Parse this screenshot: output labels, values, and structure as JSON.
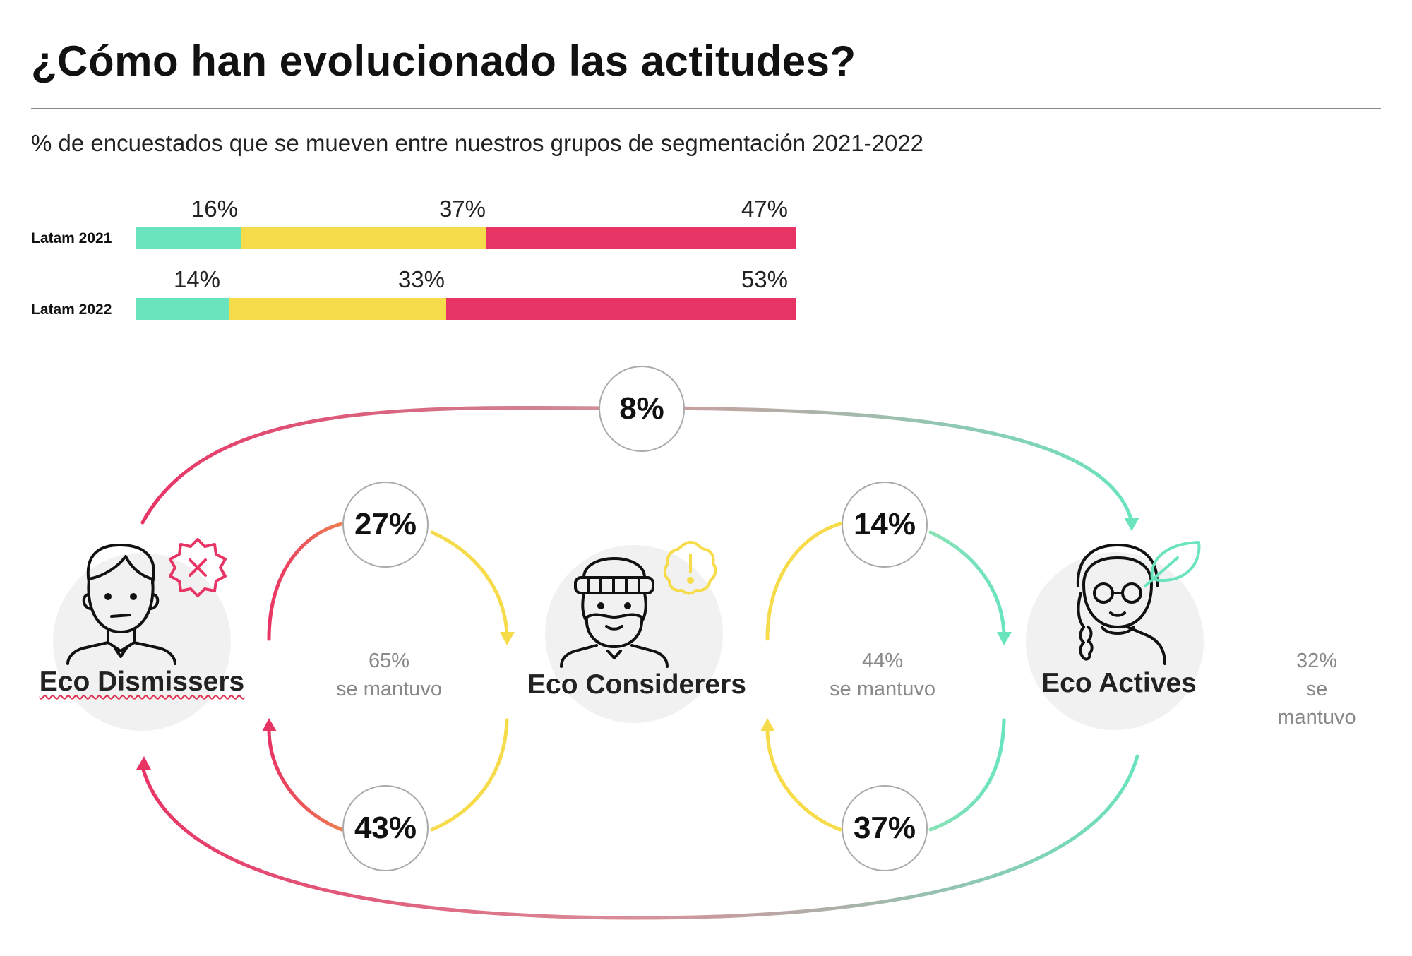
{
  "title": "¿Cómo han evolucionado las actitudes?",
  "subtitle": "% de encuestados que se mueven entre nuestros grupos de segmentación 2021-2022",
  "colors": {
    "active": "#6ae3bf",
    "considerer": "#f6db4a",
    "dismisser": "#e83465",
    "bubble_border": "#aaaaaa"
  },
  "bars": [
    {
      "label": "Latam 2021",
      "values": [
        16,
        37,
        47
      ],
      "labels": [
        "16%",
        "37%",
        "47%"
      ]
    },
    {
      "label": "Latam 2022",
      "values": [
        14,
        33,
        53
      ],
      "labels": [
        "14%",
        "33%",
        "53%"
      ]
    }
  ],
  "groups": {
    "dismissers": {
      "name": "Eco Dismissers",
      "stayed_pct": "65%",
      "stayed_label": "se mantuvo",
      "icon": "man-face-icon",
      "badge_icon": "x-badge-icon"
    },
    "considerers": {
      "name": "Eco Considerers",
      "stayed_pct": "44%",
      "stayed_label": "se mantuvo",
      "icon": "bearded-man-icon",
      "badge_icon": "exclamation-badge-icon"
    },
    "actives": {
      "name": "Eco Actives",
      "stayed_pct": "32%",
      "stayed_label": "se mantuvo",
      "icon": "woman-glasses-icon",
      "badge_icon": "leaf-icon"
    }
  },
  "flows": {
    "dismissers_to_actives": "8%",
    "dismissers_to_considerers": "27%",
    "considerers_to_dismissers": "43%",
    "considerers_to_actives": "14%",
    "actives_to_considerers": "37%"
  }
}
